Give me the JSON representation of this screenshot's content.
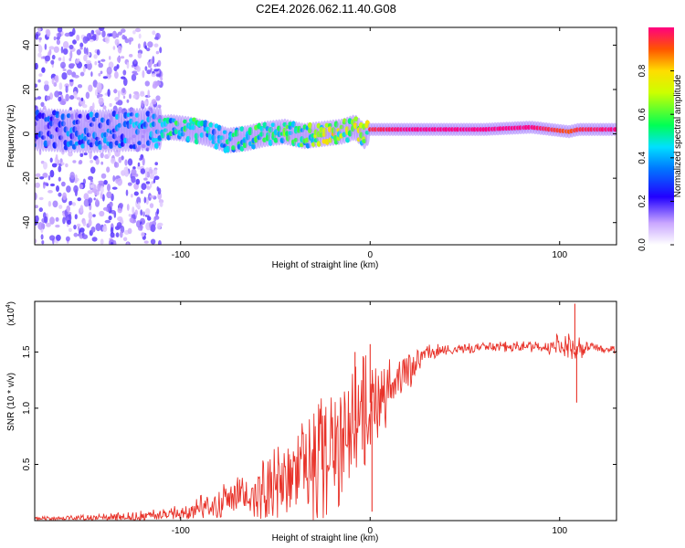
{
  "title": "C2E4.2026.062.11.40.G08",
  "chart_data": [
    {
      "type": "heatmap",
      "xlabel": "Height of straight line (km)",
      "ylabel": "Frequency (Hz)",
      "xlim": [
        -177,
        130
      ],
      "ylim": [
        -50,
        48
      ],
      "xticks": [
        -100,
        0,
        100
      ],
      "yticks": [
        -40,
        -20,
        0,
        20,
        40
      ],
      "colorbar": {
        "label": "Normalized spectral amplitude",
        "range": [
          0.0,
          1.0
        ],
        "ticks": [
          0.0,
          0.2,
          0.4,
          0.6,
          0.8
        ]
      },
      "ridge": [
        {
          "x": -177,
          "f": 2,
          "amp": 0.35
        },
        {
          "x": -150,
          "f": 1,
          "amp": 0.4
        },
        {
          "x": -120,
          "f": 2,
          "amp": 0.45
        },
        {
          "x": -105,
          "f": 3,
          "amp": 0.55
        },
        {
          "x": -95,
          "f": 2,
          "amp": 0.6
        },
        {
          "x": -85,
          "f": 0,
          "amp": 0.55
        },
        {
          "x": -75,
          "f": -3,
          "amp": 0.55
        },
        {
          "x": -65,
          "f": -2,
          "amp": 0.6
        },
        {
          "x": -55,
          "f": 0,
          "amp": 0.6
        },
        {
          "x": -45,
          "f": 1,
          "amp": 0.65
        },
        {
          "x": -35,
          "f": -1,
          "amp": 0.65
        },
        {
          "x": -25,
          "f": 0,
          "amp": 0.75
        },
        {
          "x": -15,
          "f": 1,
          "amp": 0.85
        },
        {
          "x": -8,
          "f": 3,
          "amp": 0.8
        },
        {
          "x": -3,
          "f": -1,
          "amp": 0.7
        },
        {
          "x": 0,
          "f": 2,
          "amp": 0.95
        },
        {
          "x": 20,
          "f": 2,
          "amp": 1.0
        },
        {
          "x": 60,
          "f": 2,
          "amp": 1.0
        },
        {
          "x": 85,
          "f": 3,
          "amp": 1.0
        },
        {
          "x": 95,
          "f": 2,
          "amp": 0.95
        },
        {
          "x": 105,
          "f": 1,
          "amp": 0.9
        },
        {
          "x": 110,
          "f": 2,
          "amp": 0.95
        },
        {
          "x": 130,
          "f": 2,
          "amp": 1.0
        }
      ],
      "scatter_extent": {
        "x_from": -177,
        "x_to": -110,
        "f_from": -50,
        "f_to": 48
      }
    },
    {
      "type": "line",
      "xlabel": "Height of straight line (km)",
      "ylabel": "SNR (10 * v/v)",
      "y_scale_note": "(x10",
      "y_scale_exponent": "4",
      "xlim": [
        -177,
        130
      ],
      "ylim": [
        0,
        1.95
      ],
      "xticks": [
        -100,
        0,
        100
      ],
      "yticks": [
        0.5,
        1.0,
        1.5
      ],
      "ytick_labels": [
        "0.5",
        "1.0",
        "1.5"
      ],
      "color": "#e8332a",
      "series": [
        {
          "name": "SNR",
          "x": [
            -177,
            -150,
            -130,
            -110,
            -100,
            -90,
            -80,
            -70,
            -60,
            -50,
            -40,
            -30,
            -25,
            -20,
            -15,
            -10,
            -5,
            0,
            5,
            10,
            15,
            20,
            25,
            30,
            40,
            60,
            80,
            100,
            105,
            108,
            110,
            112,
            115,
            120,
            130
          ],
          "y": [
            0.02,
            0.02,
            0.03,
            0.05,
            0.08,
            0.12,
            0.16,
            0.2,
            0.26,
            0.33,
            0.4,
            0.5,
            0.55,
            0.62,
            0.7,
            0.85,
            0.95,
            1.05,
            1.1,
            1.15,
            1.22,
            1.3,
            1.42,
            1.48,
            1.52,
            1.54,
            1.55,
            1.56,
            1.55,
            1.52,
            1.58,
            1.5,
            1.55,
            1.53,
            1.52
          ]
        }
      ],
      "spikes": [
        {
          "x": 0,
          "y": 1.57
        },
        {
          "x": 1,
          "y": 0.08
        },
        {
          "x": -8,
          "y": 1.5
        },
        {
          "x": 108,
          "y": 1.93
        },
        {
          "x": 109,
          "y": 1.05
        }
      ],
      "noise_amplitude": [
        {
          "x": -177,
          "a": 0.01
        },
        {
          "x": -100,
          "a": 0.04
        },
        {
          "x": -70,
          "a": 0.12
        },
        {
          "x": -40,
          "a": 0.25
        },
        {
          "x": -20,
          "a": 0.4
        },
        {
          "x": -5,
          "a": 0.35
        },
        {
          "x": 10,
          "a": 0.2
        },
        {
          "x": 25,
          "a": 0.08
        },
        {
          "x": 40,
          "a": 0.03
        },
        {
          "x": 80,
          "a": 0.03
        },
        {
          "x": 95,
          "a": 0.06
        },
        {
          "x": 105,
          "a": 0.08
        },
        {
          "x": 115,
          "a": 0.03
        },
        {
          "x": 130,
          "a": 0.02
        }
      ]
    }
  ]
}
